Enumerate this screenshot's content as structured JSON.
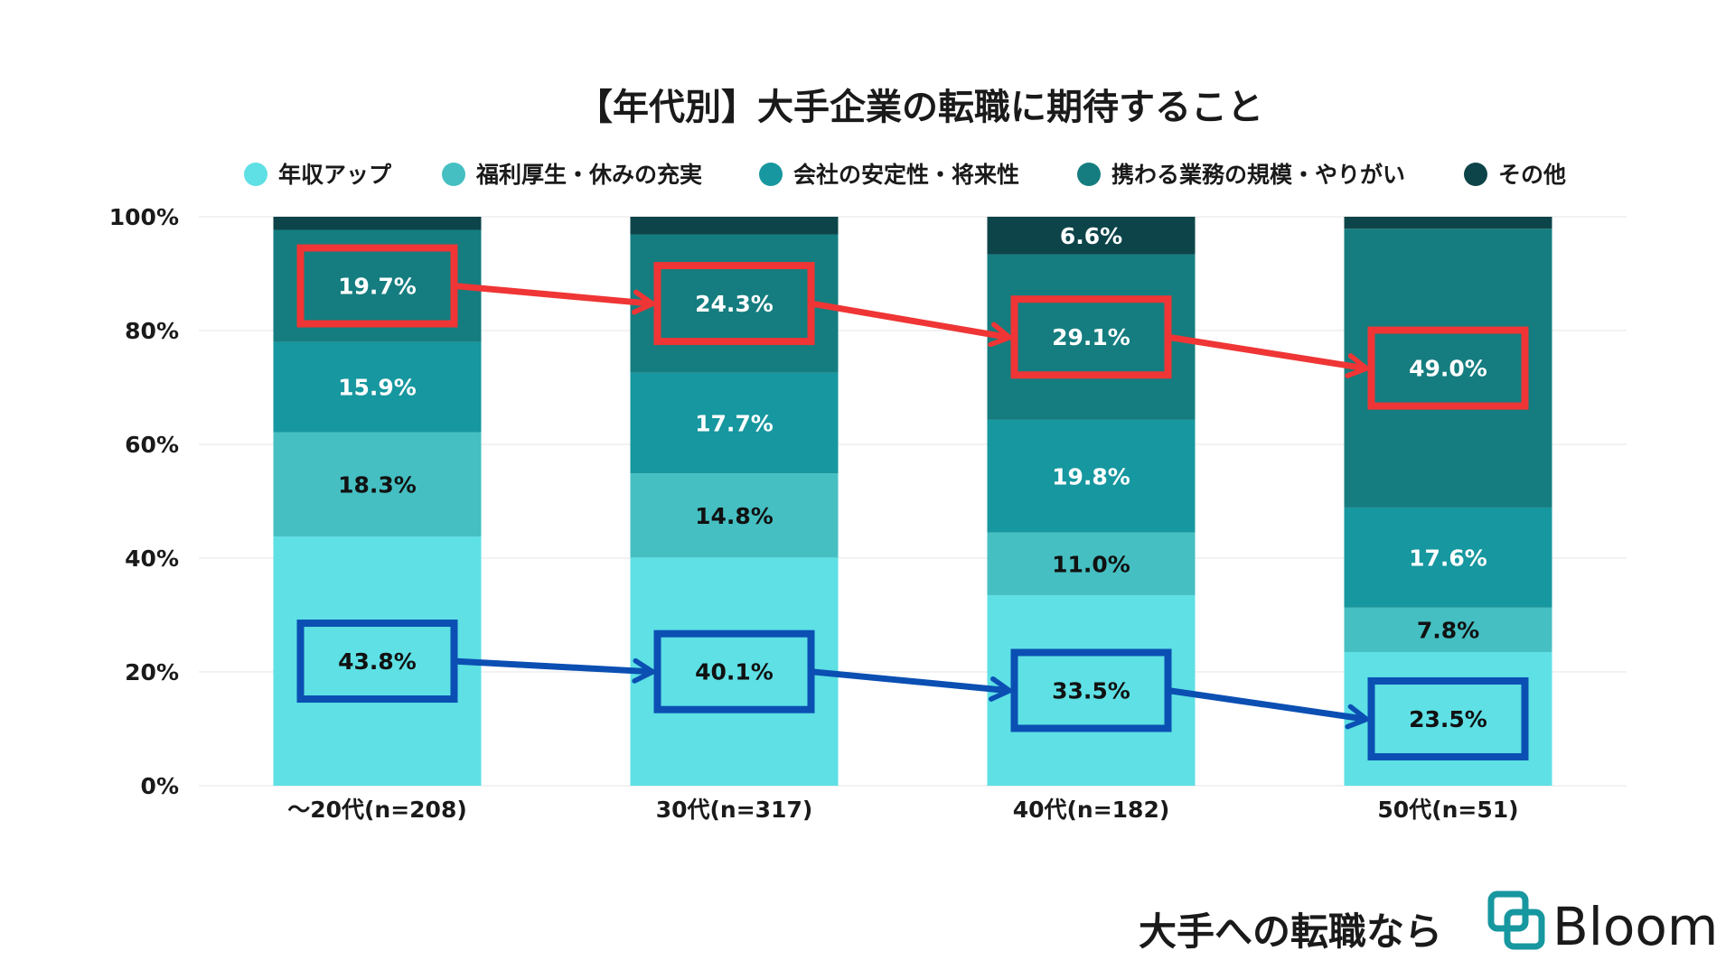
{
  "chart_data": {
    "type": "bar",
    "stacked": true,
    "title": "【年代別】大手企業の転職に期待すること",
    "xlabel": "",
    "ylabel": "",
    "ylim": [
      0,
      100
    ],
    "yticks": [
      "0%",
      "20%",
      "40%",
      "60%",
      "80%",
      "100%"
    ],
    "grid": true,
    "legend_position": "top",
    "categories": [
      "〜20代(n=208)",
      "30代(n=317)",
      "40代(n=182)",
      "50代(n=51)"
    ],
    "series": [
      {
        "name": "年収アップ",
        "color": "#5ee0e5",
        "values": [
          43.8,
          40.1,
          33.5,
          23.5
        ],
        "labels": [
          "43.8%",
          "40.1%",
          "33.5%",
          "23.5%"
        ],
        "label_color": "#111111"
      },
      {
        "name": "福利厚生・休みの充実",
        "color": "#45bfc2",
        "values": [
          18.3,
          14.8,
          11.0,
          7.8
        ],
        "labels": [
          "18.3%",
          "14.8%",
          "11.0%",
          "7.8%"
        ],
        "label_color": "#111111"
      },
      {
        "name": "会社の安定性・将来性",
        "color": "#17979f",
        "values": [
          15.9,
          17.7,
          19.8,
          17.6
        ],
        "labels": [
          "15.9%",
          "17.7%",
          "19.8%",
          "17.6%"
        ],
        "label_color": "#ffffff"
      },
      {
        "name": "携わる業務の規模・やりがい",
        "color": "#157d7f",
        "values": [
          19.7,
          24.3,
          29.1,
          49.0
        ],
        "labels": [
          "19.7%",
          "24.3%",
          "29.1%",
          "49.0%"
        ],
        "label_color": "#ffffff"
      },
      {
        "name": "その他",
        "color": "#0d4449",
        "values": [
          2.3,
          3.1,
          6.6,
          2.1
        ],
        "labels": [
          "",
          "",
          "6.6%",
          ""
        ],
        "label_color": "#ffffff"
      }
    ],
    "annotations": [
      {
        "series_index": 3,
        "color": "#ef3535",
        "type": "box-and-arrow-trend"
      },
      {
        "series_index": 0,
        "color": "#0b4fb3",
        "type": "box-and-arrow-trend"
      }
    ]
  },
  "brand": {
    "tagline": "大手への転職なら",
    "name": "Bloom",
    "text_color": "#1a1a1a",
    "logo_color": "#17979f"
  }
}
